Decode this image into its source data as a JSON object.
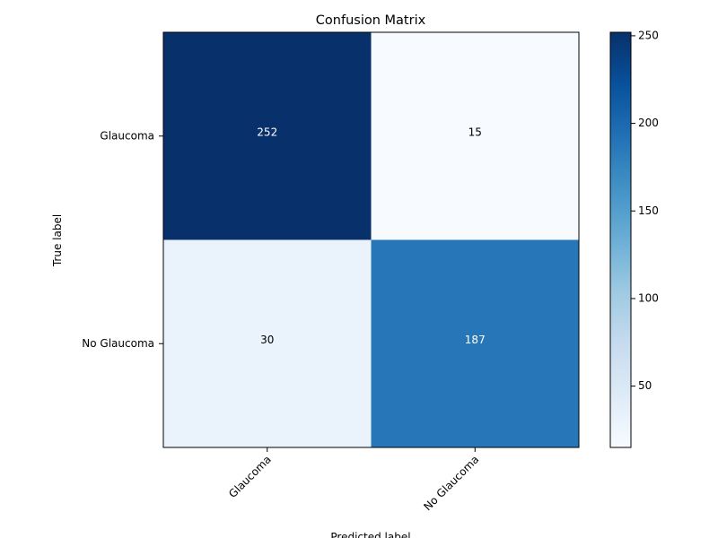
{
  "chart_data": {
    "type": "heatmap",
    "title": "Confusion Matrix",
    "xlabel": "Predicted label",
    "ylabel": "True label",
    "x_categories": [
      "Glaucoma",
      "No Glaucoma"
    ],
    "y_categories": [
      "Glaucoma",
      "No Glaucoma"
    ],
    "matrix": [
      [
        252,
        15
      ],
      [
        30,
        187
      ]
    ],
    "color_range": [
      15,
      252
    ],
    "colormap": "Blues",
    "colorbar_ticks": [
      50,
      100,
      150,
      200,
      250
    ],
    "grid": false,
    "legend": "colorbar-right",
    "colors": {
      "low": "#f7fbff",
      "high": "#08306b",
      "light_text": "#ffffff",
      "dark_text": "#000000"
    }
  }
}
